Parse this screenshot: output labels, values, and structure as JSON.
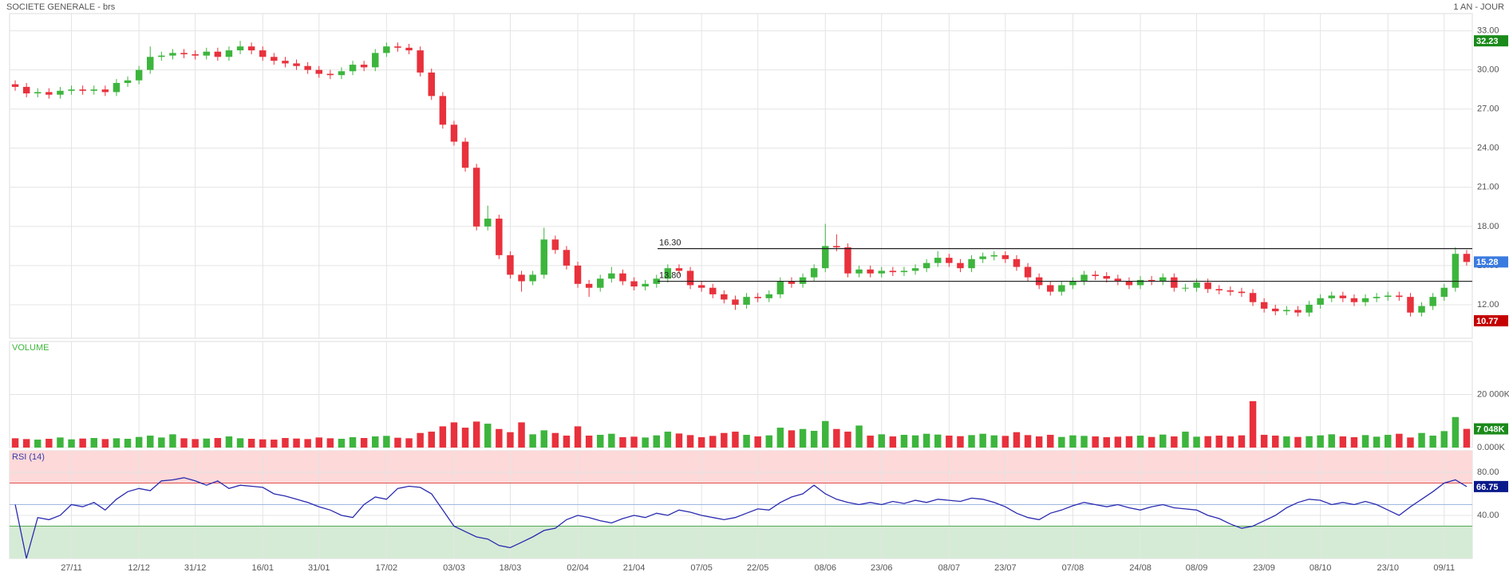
{
  "chart_data": [
    {
      "type": "candlestick",
      "title": "SOCIETE GENERALE - brs",
      "period": "1 AN - JOUR",
      "open": [
        28.9,
        28.7,
        28.2,
        28.3,
        28.1,
        28.4,
        28.5,
        28.4,
        28.5,
        28.3,
        29.0,
        29.2,
        30.0,
        31.0,
        31.1,
        31.3,
        31.2,
        31.1,
        31.4,
        31.0,
        31.5,
        31.8,
        31.5,
        31.0,
        30.7,
        30.5,
        30.3,
        30.0,
        29.7,
        29.6,
        29.9,
        30.4,
        30.2,
        31.3,
        31.8,
        31.7,
        31.5,
        29.8,
        28.0,
        25.8,
        24.5,
        22.5,
        18.0,
        18.6,
        15.8,
        14.3,
        13.8,
        14.3,
        17.0,
        16.2,
        15.0,
        13.6,
        13.3,
        14.0,
        14.4,
        13.8,
        13.4,
        13.6,
        14.0,
        14.8,
        14.6,
        13.5,
        13.3,
        12.8,
        12.4,
        12.0,
        12.6,
        12.5,
        12.8,
        13.8,
        13.6,
        14.1,
        14.8,
        16.5,
        16.4,
        14.4,
        14.7,
        14.4,
        14.6,
        14.5,
        14.6,
        14.8,
        15.2,
        15.6,
        15.2,
        14.8,
        15.5,
        15.7,
        15.8,
        15.5,
        14.9,
        14.1,
        13.5,
        13.0,
        13.5,
        13.8,
        14.3,
        14.2,
        14.0,
        13.8,
        13.5,
        13.9,
        13.8,
        14.1,
        13.3,
        13.3,
        13.7,
        13.2,
        13.1,
        13.0,
        12.9,
        12.2,
        11.7,
        11.5,
        11.6,
        11.4,
        12.0,
        12.5,
        12.7,
        12.5,
        12.2,
        12.5,
        12.6,
        12.7,
        12.6,
        11.4,
        11.9,
        12.6,
        13.3,
        15.9
      ],
      "high": [
        29.2,
        29.0,
        28.6,
        28.6,
        28.7,
        28.8,
        28.8,
        28.8,
        28.8,
        29.3,
        29.5,
        30.3,
        31.8,
        31.4,
        31.6,
        31.6,
        31.5,
        31.7,
        31.7,
        31.8,
        32.23,
        32.1,
        31.8,
        31.3,
        31.0,
        30.8,
        30.6,
        30.3,
        30.0,
        30.2,
        30.7,
        30.7,
        31.6,
        32.1,
        32.1,
        32.0,
        31.8,
        30.1,
        28.3,
        26.1,
        24.8,
        22.8,
        19.6,
        18.9,
        16.1,
        14.6,
        14.6,
        17.9,
        17.3,
        16.5,
        15.3,
        13.9,
        14.3,
        14.9,
        14.7,
        14.1,
        13.9,
        14.3,
        15.1,
        15.1,
        14.9,
        13.8,
        13.6,
        13.1,
        12.7,
        12.9,
        12.9,
        13.1,
        14.1,
        14.1,
        14.4,
        15.1,
        18.2,
        17.4,
        16.7,
        15.0,
        15.0,
        14.9,
        14.9,
        14.9,
        15.1,
        15.5,
        16.1,
        15.9,
        15.5,
        15.8,
        16.0,
        16.1,
        16.1,
        15.8,
        15.2,
        14.4,
        13.8,
        13.8,
        14.1,
        14.6,
        14.6,
        14.5,
        14.3,
        14.1,
        14.2,
        14.2,
        14.4,
        14.4,
        13.6,
        14.0,
        14.0,
        13.5,
        13.4,
        13.3,
        13.2,
        12.5,
        12.0,
        11.9,
        11.9,
        12.3,
        12.8,
        13.0,
        13.0,
        12.8,
        12.8,
        12.9,
        13.0,
        13.0,
        12.9,
        12.2,
        12.9,
        13.6,
        16.4,
        16.2
      ],
      "low": [
        28.4,
        27.9,
        27.9,
        27.8,
        27.8,
        28.1,
        28.1,
        28.1,
        28.0,
        28.0,
        28.7,
        28.9,
        29.7,
        30.7,
        30.8,
        30.9,
        30.8,
        30.8,
        30.7,
        30.7,
        31.2,
        31.2,
        30.7,
        30.4,
        30.2,
        30.0,
        29.7,
        29.4,
        29.3,
        29.3,
        29.6,
        29.9,
        29.9,
        31.0,
        31.4,
        31.2,
        29.5,
        27.7,
        25.5,
        24.2,
        22.2,
        17.7,
        17.7,
        15.5,
        14.0,
        13.0,
        13.5,
        14.0,
        15.9,
        14.7,
        13.3,
        12.6,
        13.0,
        13.7,
        13.5,
        13.1,
        13.1,
        13.3,
        13.7,
        14.3,
        13.2,
        13.0,
        12.5,
        12.1,
        11.6,
        11.7,
        12.2,
        12.2,
        12.5,
        13.3,
        13.3,
        13.8,
        14.5,
        16.1,
        14.1,
        14.1,
        14.1,
        14.1,
        14.2,
        14.2,
        14.3,
        14.5,
        14.9,
        14.9,
        14.5,
        14.5,
        15.2,
        15.4,
        15.2,
        14.6,
        13.8,
        13.2,
        12.7,
        12.7,
        13.2,
        13.5,
        13.9,
        13.7,
        13.5,
        13.2,
        13.2,
        13.5,
        13.5,
        13.0,
        13.0,
        13.0,
        12.9,
        12.8,
        12.7,
        12.6,
        11.9,
        11.4,
        11.2,
        11.2,
        11.1,
        11.1,
        11.7,
        12.2,
        12.2,
        11.9,
        11.9,
        12.2,
        12.3,
        12.3,
        11.1,
        11.1,
        11.6,
        12.3,
        13.0,
        15.0
      ],
      "close": [
        28.7,
        28.2,
        28.3,
        28.1,
        28.4,
        28.5,
        28.4,
        28.5,
        28.3,
        29.0,
        29.2,
        30.0,
        31.0,
        31.1,
        31.3,
        31.2,
        31.1,
        31.4,
        31.0,
        31.5,
        31.8,
        31.5,
        31.0,
        30.7,
        30.5,
        30.3,
        30.0,
        29.7,
        29.6,
        29.9,
        30.4,
        30.2,
        31.3,
        31.8,
        31.7,
        31.5,
        29.8,
        28.0,
        25.8,
        24.5,
        22.5,
        18.0,
        18.6,
        15.8,
        14.3,
        13.8,
        14.3,
        17.0,
        16.2,
        15.0,
        13.6,
        13.3,
        14.0,
        14.4,
        13.8,
        13.4,
        13.6,
        14.0,
        14.8,
        14.6,
        13.5,
        13.3,
        12.8,
        12.4,
        12.0,
        12.6,
        12.5,
        12.8,
        13.8,
        13.6,
        14.1,
        14.8,
        16.5,
        16.4,
        14.4,
        14.7,
        14.4,
        14.6,
        14.5,
        14.6,
        14.8,
        15.2,
        15.6,
        15.2,
        14.8,
        15.5,
        15.7,
        15.8,
        15.5,
        14.9,
        14.1,
        13.5,
        13.0,
        13.5,
        13.8,
        14.3,
        14.2,
        14.0,
        13.8,
        13.5,
        13.9,
        13.8,
        14.1,
        13.3,
        13.3,
        13.7,
        13.2,
        13.1,
        13.0,
        12.9,
        12.2,
        11.7,
        11.5,
        11.6,
        11.4,
        12.0,
        12.5,
        12.7,
        12.5,
        12.2,
        12.5,
        12.6,
        12.7,
        12.6,
        11.4,
        11.9,
        12.6,
        13.3,
        15.9,
        15.28
      ],
      "up_color": "#3db53d",
      "down_color": "#e8313c",
      "ylim": [
        9.43,
        34.32
      ],
      "yticks": [
        {
          "value": 12,
          "label": "12.00"
        },
        {
          "value": 15,
          "label": "15.00"
        },
        {
          "value": 18,
          "label": "18.00"
        },
        {
          "value": 21,
          "label": "21.00"
        },
        {
          "value": 24,
          "label": "24.00"
        },
        {
          "value": 27,
          "label": "27.00"
        },
        {
          "value": 30,
          "label": "30.00"
        },
        {
          "value": 33,
          "label": "33.00"
        }
      ],
      "grid": true,
      "levels": [
        {
          "value": 16.3,
          "label": "16.30"
        },
        {
          "value": 13.8,
          "label": "13.80"
        }
      ],
      "markers": [
        {
          "value": 32.23,
          "color": "#1a8a1a"
        },
        {
          "value": 15.28,
          "color": "#3a7be0"
        },
        {
          "value": 10.77,
          "color": "#c40000"
        }
      ]
    },
    {
      "type": "bar",
      "title": "VOLUME",
      "title_color": "#3db53d",
      "values": [
        3500,
        3200,
        3000,
        3300,
        3800,
        3100,
        3400,
        3600,
        3200,
        3500,
        3300,
        4000,
        4500,
        3800,
        5000,
        3500,
        3200,
        3400,
        3600,
        4200,
        3500,
        3300,
        3100,
        3000,
        3600,
        3400,
        3200,
        3800,
        3500,
        3300,
        3900,
        3600,
        4200,
        4400,
        3700,
        3500,
        5500,
        6000,
        8000,
        9500,
        7500,
        9800,
        9000,
        7000,
        5800,
        9500,
        5000,
        6500,
        5500,
        4500,
        8000,
        4500,
        4800,
        5200,
        3900,
        4100,
        3800,
        4600,
        6000,
        5300,
        4700,
        3900,
        4400,
        5500,
        6000,
        4800,
        4200,
        4600,
        7500,
        6500,
        7000,
        6300,
        10000,
        7000,
        6000,
        8300,
        4500,
        5000,
        4200,
        4800,
        4600,
        5200,
        4900,
        4500,
        4300,
        4700,
        5200,
        4600,
        4400,
        5800,
        4700,
        4200,
        4800,
        4000,
        4600,
        4400,
        4200,
        3900,
        4100,
        4300,
        4500,
        4000,
        4900,
        4200,
        6000,
        4100,
        4300,
        4500,
        4200,
        4600,
        17500,
        4800,
        4500,
        4200,
        4000,
        4300,
        4600,
        5000,
        4200,
        3900,
        4700,
        4100,
        4800,
        5200,
        3800,
        5500,
        4500,
        6200,
        11500,
        7048
      ],
      "ylim": [
        0,
        40000
      ],
      "yticks": [
        {
          "value": 0,
          "label": "0.000K"
        },
        {
          "value": 20000,
          "label": "20 000K"
        }
      ],
      "markers": [
        {
          "value": 7048,
          "label": "7 048K",
          "color": "#1a8a1a"
        }
      ]
    },
    {
      "type": "line",
      "title": "RSI (14)",
      "title_color": "#3a3aaa",
      "color": "#2a2ab0",
      "values": [
        50,
        0,
        38,
        36,
        40,
        50,
        48,
        52,
        45,
        55,
        62,
        65,
        63,
        72,
        73,
        75,
        72,
        68,
        72,
        65,
        68,
        67,
        66,
        60,
        58,
        55,
        52,
        48,
        45,
        40,
        38,
        50,
        57,
        55,
        65,
        67,
        66,
        60,
        45,
        30,
        25,
        20,
        18,
        12,
        10,
        15,
        20,
        26,
        28,
        36,
        40,
        38,
        35,
        33,
        37,
        40,
        38,
        42,
        40,
        45,
        43,
        40,
        38,
        36,
        38,
        42,
        46,
        45,
        52,
        57,
        60,
        68,
        60,
        55,
        52,
        50,
        52,
        50,
        53,
        51,
        54,
        52,
        55,
        54,
        53,
        56,
        55,
        52,
        48,
        42,
        38,
        36,
        42,
        45,
        49,
        52,
        50,
        48,
        50,
        47,
        45,
        48,
        50,
        47,
        46,
        45,
        40,
        37,
        32,
        28,
        30,
        35,
        40,
        47,
        52,
        55,
        54,
        50,
        52,
        50,
        53,
        50,
        45,
        40,
        48,
        55,
        62,
        70,
        73,
        66.75
      ],
      "ylim": [
        0,
        100
      ],
      "yticks": [
        {
          "value": 40,
          "label": "40.00"
        },
        {
          "value": 80,
          "label": "80.00"
        }
      ],
      "overbought": 70,
      "oversold": 30,
      "midline": 50,
      "markers": [
        {
          "value": 66.75,
          "color": "#0a1a8a"
        }
      ],
      "xticks": [
        {
          "value": 5,
          "label": "27/11"
        },
        {
          "value": 11,
          "label": "12/12"
        },
        {
          "value": 16,
          "label": "31/12"
        },
        {
          "value": 22,
          "label": "16/01"
        },
        {
          "value": 27,
          "label": "31/01"
        },
        {
          "value": 33,
          "label": "17/02"
        },
        {
          "value": 39,
          "label": "03/03"
        },
        {
          "value": 44,
          "label": "18/03"
        },
        {
          "value": 50,
          "label": "02/04"
        },
        {
          "value": 55,
          "label": "21/04"
        },
        {
          "value": 61,
          "label": "07/05"
        },
        {
          "value": 66,
          "label": "22/05"
        },
        {
          "value": 72,
          "label": "08/06"
        },
        {
          "value": 77,
          "label": "23/06"
        },
        {
          "value": 83,
          "label": "08/07"
        },
        {
          "value": 88,
          "label": "23/07"
        },
        {
          "value": 94,
          "label": "07/08"
        },
        {
          "value": 100,
          "label": "24/08"
        },
        {
          "value": 105,
          "label": "08/09"
        },
        {
          "value": 111,
          "label": "23/09"
        },
        {
          "value": 116,
          "label": "08/10"
        },
        {
          "value": 122,
          "label": "23/10"
        },
        {
          "value": 127,
          "label": "09/11"
        }
      ]
    }
  ]
}
